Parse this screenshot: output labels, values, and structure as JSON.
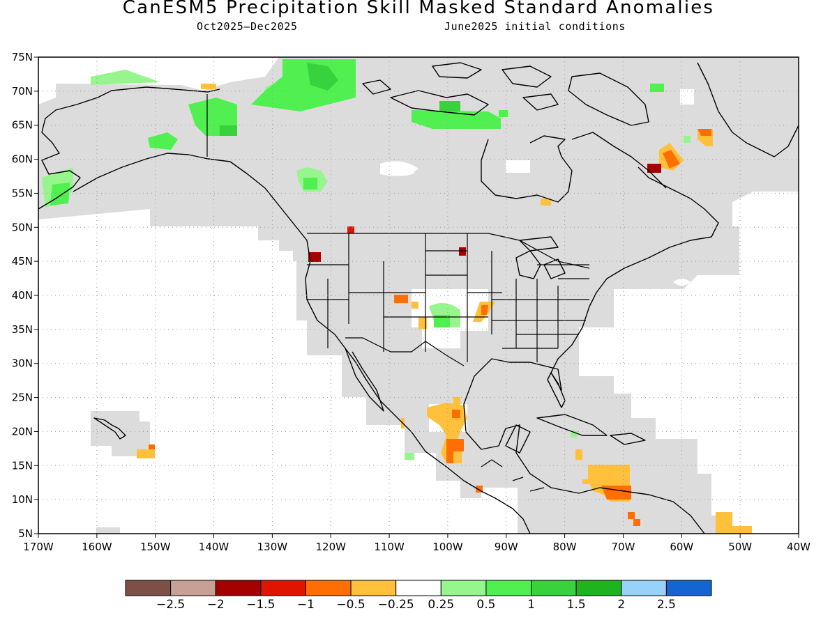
{
  "title": "CanESM5 Precipitation Skill Masked Standard Anomalies",
  "subtitle_left": "Oct2025–Dec2025",
  "subtitle_right": "June2025 initial conditions",
  "map": {
    "lon_range": [
      -170,
      -40
    ],
    "lat_range": [
      5,
      75
    ],
    "lat_ticks": [
      {
        "value": 75,
        "label": "75N"
      },
      {
        "value": 70,
        "label": "70N"
      },
      {
        "value": 65,
        "label": "65N"
      },
      {
        "value": 60,
        "label": "60N"
      },
      {
        "value": 55,
        "label": "55N"
      },
      {
        "value": 50,
        "label": "50N"
      },
      {
        "value": 45,
        "label": "45N"
      },
      {
        "value": 40,
        "label": "40N"
      },
      {
        "value": 35,
        "label": "35N"
      },
      {
        "value": 30,
        "label": "30N"
      },
      {
        "value": 25,
        "label": "25N"
      },
      {
        "value": 20,
        "label": "20N"
      },
      {
        "value": 15,
        "label": "15N"
      },
      {
        "value": 10,
        "label": "10N"
      },
      {
        "value": 5,
        "label": "5N"
      }
    ],
    "lon_ticks": [
      {
        "value": -170,
        "label": "170W"
      },
      {
        "value": -160,
        "label": "160W"
      },
      {
        "value": -150,
        "label": "150W"
      },
      {
        "value": -140,
        "label": "140W"
      },
      {
        "value": -130,
        "label": "130W"
      },
      {
        "value": -120,
        "label": "120W"
      },
      {
        "value": -110,
        "label": "110W"
      },
      {
        "value": -100,
        "label": "100W"
      },
      {
        "value": -90,
        "label": "90W"
      },
      {
        "value": -80,
        "label": "80W"
      },
      {
        "value": -70,
        "label": "70W"
      },
      {
        "value": -60,
        "label": "60W"
      },
      {
        "value": -50,
        "label": "50W"
      },
      {
        "value": -40,
        "label": "40W"
      }
    ],
    "colors": {
      "skill_mask": "#dcdcdc",
      "pos_0_25_0_5": "#96f58c",
      "pos_0_5_1": "#50f050",
      "pos_1_1_5": "#37d23c",
      "neg_0_25_0_5": "#ffc03c",
      "neg_0_5_1": "#ff6e00",
      "neg_1_1_5": "#e11400",
      "neg_1_5_2": "#a50000"
    }
  },
  "colorbar": {
    "colors": [
      "#7d5046",
      "#c8a096",
      "#a50000",
      "#e11400",
      "#ff6e00",
      "#ffc03c",
      "#ffffff",
      "#96f58c",
      "#50f050",
      "#37d23c",
      "#1eb41e",
      "#96d2fa",
      "#1464d2"
    ],
    "labels": [
      "−2.5",
      "−2",
      "−1.5",
      "−1",
      "−0.5",
      "−0.25",
      "0.25",
      "0.5",
      "1",
      "1.5",
      "2",
      "2.5"
    ]
  }
}
